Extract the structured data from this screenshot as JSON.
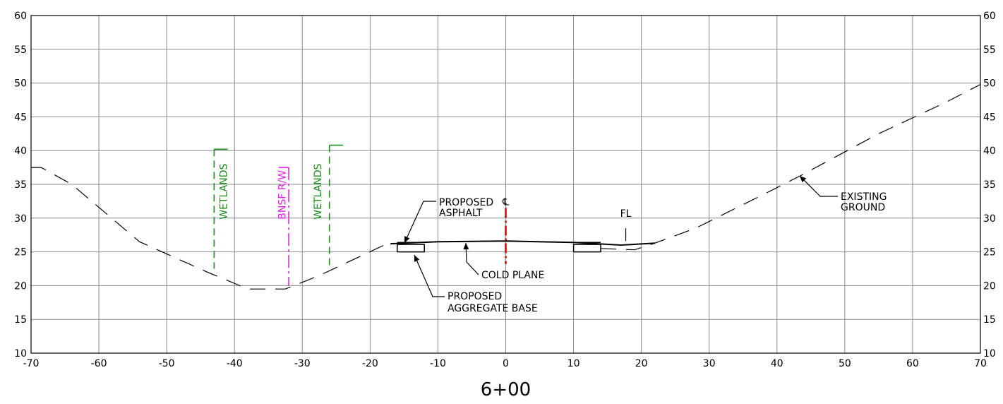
{
  "chart_data": {
    "type": "line",
    "title": "6+00",
    "xlabel": "",
    "ylabel": "",
    "xlim": [
      -70,
      70
    ],
    "ylim": [
      10,
      60
    ],
    "x_ticks": [
      "-70",
      "-60",
      "-50",
      "-40",
      "-30",
      "-20",
      "-10",
      "0",
      "10",
      "20",
      "30",
      "40",
      "50",
      "60",
      "70"
    ],
    "y_ticks": [
      "10",
      "15",
      "20",
      "25",
      "30",
      "35",
      "40",
      "45",
      "50",
      "55",
      "60"
    ],
    "grid": true,
    "series": [
      {
        "name": "",
        "style": "dashed",
        "points": [
          [
            -70,
            37.5
          ],
          [
            -68.5,
            37.5
          ],
          [
            -64,
            35
          ],
          [
            -54,
            26.5
          ],
          [
            -44,
            22
          ],
          [
            -38,
            19.5
          ],
          [
            -32.5,
            19.5
          ],
          [
            -27.5,
            21.5
          ],
          [
            -17.5,
            26.2
          ]
        ]
      },
      {
        "name": "",
        "style": "dashed",
        "points": [
          [
            14,
            25.5
          ],
          [
            19,
            25.3
          ],
          [
            22,
            26.3
          ],
          [
            28,
            28.5
          ],
          [
            38,
            33.5
          ],
          [
            43.5,
            36.3
          ],
          [
            55,
            42.5
          ],
          [
            65,
            47.2
          ],
          [
            70,
            49.8
          ]
        ]
      },
      {
        "name": "",
        "style": "solid",
        "points": [
          [
            -17,
            26.2
          ],
          [
            -10,
            26.5
          ],
          [
            0,
            26.6
          ],
          [
            10,
            26.4
          ],
          [
            17,
            26.0
          ],
          [
            22,
            26.3
          ]
        ]
      }
    ],
    "annotations": {
      "wetlands_left": "WETLANDS",
      "bnsf_rw": "BNSF R/W",
      "wetlands_right": "WETLANDS",
      "centerline_symbol": "℄",
      "fl": "FL",
      "proposed_asphalt": [
        "PROPOSED",
        "ASPHALT"
      ],
      "cold_plane": "COLD PLANE",
      "proposed_aggregate_base": [
        "PROPOSED",
        "AGGREGATE BASE"
      ],
      "existing_ground": [
        "EXISTING",
        "GROUND"
      ]
    },
    "colors": {
      "wetlands": "#1a8a1a",
      "rw": "#e020e0",
      "centerline": "#e00000",
      "grid": "#8c8c8c",
      "ink": "#000000"
    }
  }
}
